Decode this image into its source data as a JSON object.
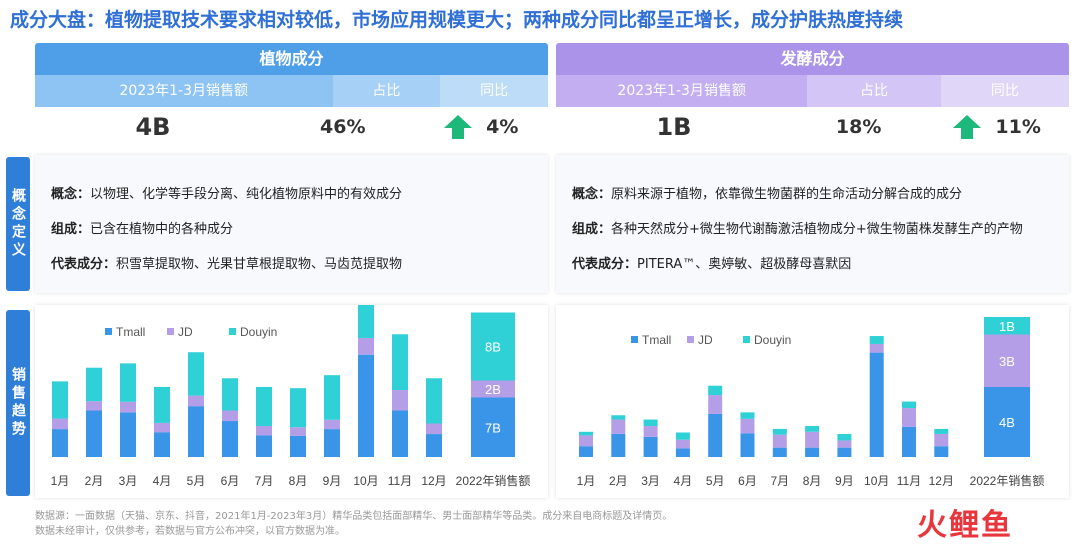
{
  "title": "成分大盘：植物提取技术要求相对较低，市场应用规模更大；两种成分同比都呈正增长，成分护肤热度持续",
  "colors": {
    "title": "#2f6fd6",
    "plant_header": "#4f9ee8",
    "plant_sub": "#8ec4f3",
    "ferment_header": "#ac93ea",
    "ferment_sub": "#c9b8f3",
    "arrow": "#1db87a",
    "tmall": "#3a94e8",
    "jd": "#b59ee8",
    "douyin": "#2fd0d6"
  },
  "plant": {
    "header": "植物成分",
    "col_sales": "2023年1-3月销售额",
    "col_share": "占比",
    "col_yoy": "同比",
    "sales": "4B",
    "share": "46%",
    "yoy": "4%",
    "concept_label": "概念：",
    "concept": "以物理、化学等手段分离、纯化植物原料中的有效成分",
    "composition_label": "组成：",
    "composition": "已含在植物中的各种成分",
    "representative_label": "代表成分：",
    "representative": "积雪草提取物、光果甘草根提取物、马齿苋提取物"
  },
  "ferment": {
    "header": "发酵成分",
    "col_sales": "2023年1-3月销售额",
    "col_share": "占比",
    "col_yoy": "同比",
    "sales": "1B",
    "share": "18%",
    "yoy": "11%",
    "concept_label": "概念：",
    "concept": "原料来源于植物，依靠微生物菌群的生命活动分解合成的成分",
    "composition_label": "组成：",
    "composition": "各种天然成分+微生物代谢酶激活植物成分+微生物菌株发酵生产的产物",
    "representative_label": "代表成分：",
    "representative": "PITERA™、奥婷敏、超极酵母喜默因"
  },
  "side_labels": {
    "definition": "概念定义",
    "trend": "销售趋势"
  },
  "footer": {
    "line1": "数据源：一面数据（天猫、京东、抖音，2021年1月-2023年3月）精华品类包括面部精华、男士面部精华等品类。成分来自电商标题及详情页。",
    "line2": "数据未经审计，仅供参考，若数据与官方公布冲突，以官方数据为准。"
  },
  "logo": "火鲤鱼",
  "chart_data": [
    {
      "type": "bar",
      "stacked": true,
      "categories": [
        "1月",
        "2月",
        "3月",
        "4月",
        "5月",
        "6月",
        "7月",
        "8月",
        "9月",
        "10月",
        "11月",
        "12月"
      ],
      "series": [
        {
          "name": "Tmall",
          "values": [
            0.45,
            0.75,
            0.72,
            0.4,
            0.82,
            0.58,
            0.35,
            0.34,
            0.45,
            1.65,
            0.75,
            0.37
          ]
        },
        {
          "name": "JD",
          "values": [
            0.17,
            0.15,
            0.17,
            0.15,
            0.17,
            0.17,
            0.15,
            0.14,
            0.15,
            0.27,
            0.33,
            0.17
          ]
        },
        {
          "name": "Douyin",
          "values": [
            0.6,
            0.54,
            0.62,
            0.58,
            0.7,
            0.52,
            0.63,
            0.63,
            0.72,
            0.95,
            0.9,
            0.73
          ]
        }
      ],
      "total_column": {
        "label": "2022年销售额",
        "values": [
          7,
          2,
          8
        ],
        "labels": [
          "7B",
          "2B",
          "8B"
        ]
      },
      "legend_position": "top-left"
    },
    {
      "type": "bar",
      "stacked": true,
      "categories": [
        "1月",
        "2月",
        "3月",
        "4月",
        "5月",
        "6月",
        "7月",
        "8月",
        "9月",
        "10月",
        "11月",
        "12月"
      ],
      "series": [
        {
          "name": "Tmall",
          "values": [
            0.15,
            0.32,
            0.28,
            0.12,
            0.6,
            0.33,
            0.13,
            0.13,
            0.13,
            1.45,
            0.42,
            0.15
          ]
        },
        {
          "name": "JD",
          "values": [
            0.15,
            0.2,
            0.15,
            0.12,
            0.26,
            0.2,
            0.18,
            0.22,
            0.1,
            0.12,
            0.26,
            0.17
          ]
        },
        {
          "name": "Douyin",
          "values": [
            0.05,
            0.06,
            0.09,
            0.1,
            0.13,
            0.09,
            0.08,
            0.08,
            0.09,
            0.11,
            0.09,
            0.07
          ]
        }
      ],
      "total_column": {
        "label": "2022年销售额",
        "values": [
          4,
          3,
          1
        ],
        "labels": [
          "4B",
          "3B",
          "1B"
        ]
      },
      "legend_position": "top-left"
    }
  ]
}
